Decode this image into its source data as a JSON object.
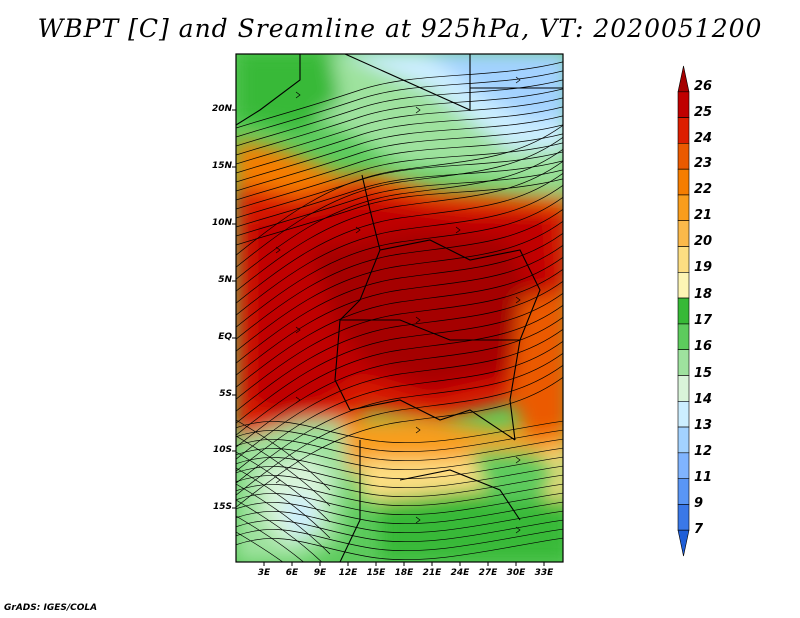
{
  "title": "WBPT [C] and Sreamline at 925hPa, VT: 2020051200",
  "variable": "WBPT",
  "units": "C",
  "level": "925hPa",
  "valid_time": "2020051200",
  "latitude_labels": [
    "20N",
    "15N",
    "10N",
    "5N",
    "EQ",
    "5S",
    "10S",
    "15S"
  ],
  "longitude_labels": [
    "3E",
    "6E",
    "9E",
    "12E",
    "15E",
    "18E",
    "21E",
    "24E",
    "27E",
    "30E",
    "33E"
  ],
  "colorbar": {
    "labels": [
      "26",
      "25",
      "24",
      "23",
      "22",
      "21",
      "20",
      "19",
      "18",
      "17",
      "16",
      "15",
      "14",
      "13",
      "12",
      "11",
      "9",
      "7"
    ],
    "colors": [
      "#a50000",
      "#c00000",
      "#dc1e00",
      "#eb5a00",
      "#f57d00",
      "#f99d1c",
      "#fbb94a",
      "#fdde82",
      "#fdf5b4",
      "#37b937",
      "#5dcb5d",
      "#9ee29e",
      "#d9f4d9",
      "#cceeff",
      "#a3d2ff",
      "#80b4ff",
      "#5a96f5",
      "#3a78e8",
      "#1e5ed8"
    ]
  },
  "credit": "GrADS: IGES/COLA",
  "map_data": {
    "lat_range": [
      -20,
      25
    ],
    "lon_range": [
      0,
      35
    ],
    "features": [
      "WBPT shading",
      "925hPa streamlines",
      "country borders"
    ]
  }
}
